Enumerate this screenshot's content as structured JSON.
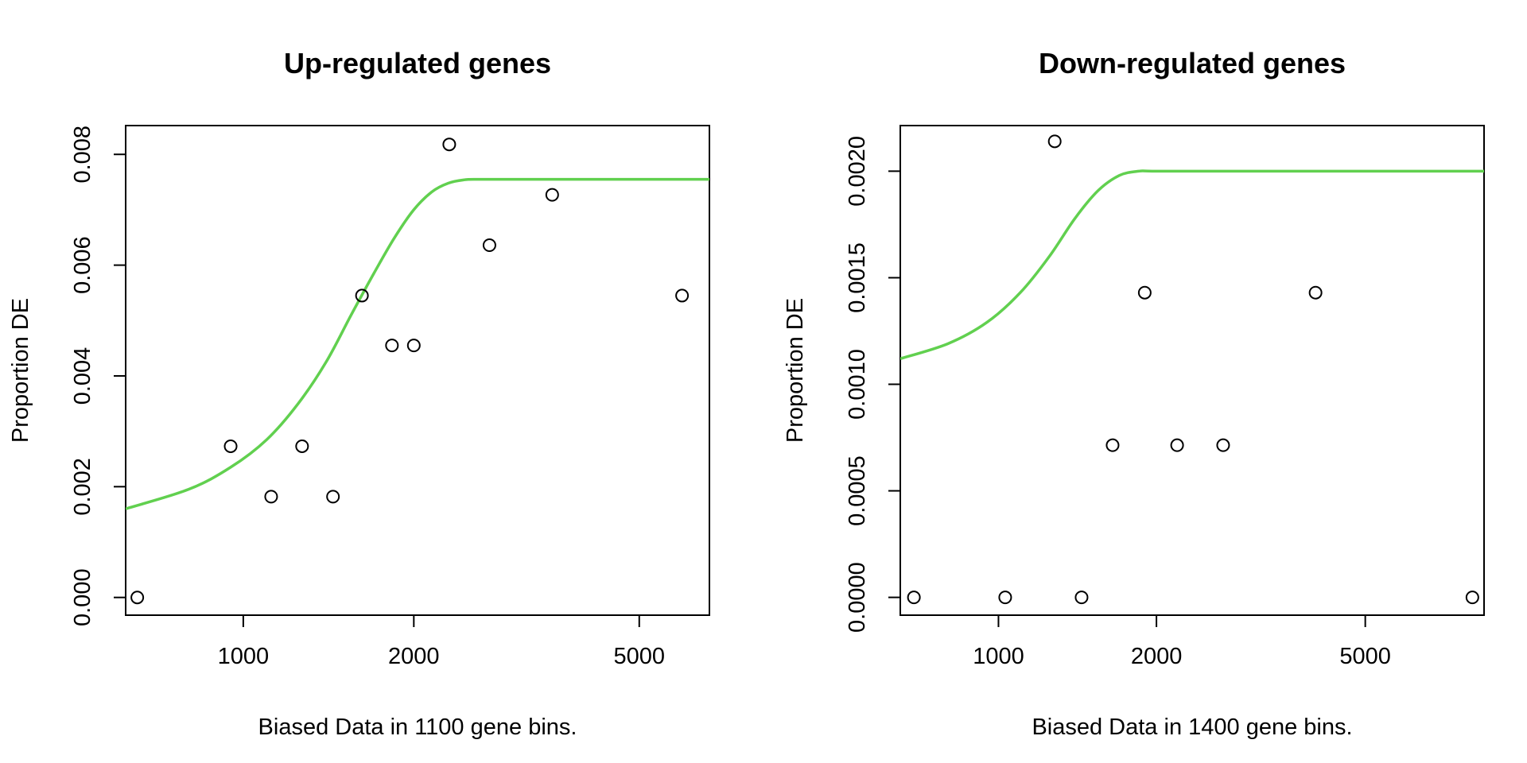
{
  "chart_data": [
    {
      "type": "scatter",
      "title": "Up-regulated genes",
      "xlabel": "Biased Data in 1100 gene bins.",
      "ylabel": "Proportion DE",
      "x_scale": "log",
      "xlim": [
        620,
        6650
      ],
      "ylim": [
        -0.00032,
        0.00852
      ],
      "x_ticks": [
        1000,
        2000,
        5000
      ],
      "x_tick_labels": [
        "1000",
        "2000",
        "5000"
      ],
      "y_ticks": [
        0,
        0.002,
        0.004,
        0.006,
        0.008
      ],
      "y_tick_labels": [
        "0.000",
        "0.002",
        "0.004",
        "0.006",
        "0.008"
      ],
      "points": {
        "x": [
          650,
          950,
          1120,
          1270,
          1440,
          1620,
          1830,
          2000,
          2310,
          2720,
          3510,
          5950
        ],
        "y": [
          0.0,
          0.00273,
          0.00182,
          0.00273,
          0.00182,
          0.00545,
          0.00455,
          0.00455,
          0.00818,
          0.00636,
          0.00727,
          0.00545
        ]
      },
      "fit_line": {
        "color": "#61d04f",
        "x": [
          620,
          800,
          950,
          1100,
          1250,
          1400,
          1550,
          1700,
          1850,
          2000,
          2150,
          2300,
          2450,
          2600,
          3000,
          4000,
          5000,
          6650
        ],
        "y": [
          0.0016,
          0.00195,
          0.00235,
          0.00285,
          0.0035,
          0.00425,
          0.0051,
          0.00585,
          0.0065,
          0.007,
          0.00732,
          0.00748,
          0.00754,
          0.00755,
          0.00755,
          0.00755,
          0.00755,
          0.00755
        ]
      },
      "grid": false,
      "legend": "none"
    },
    {
      "type": "scatter",
      "title": "Down-regulated genes",
      "xlabel": "Biased Data in 1400 gene bins.",
      "ylabel": "Proportion DE",
      "x_scale": "log",
      "xlim": [
        650,
        8420
      ],
      "ylim": [
        -8.35e-05,
        0.002214
      ],
      "x_ticks": [
        1000,
        2000,
        5000
      ],
      "x_tick_labels": [
        "1000",
        "2000",
        "5000"
      ],
      "y_ticks": [
        0,
        0.0005,
        0.001,
        0.0015,
        0.002
      ],
      "y_tick_labels": [
        "0.0000",
        "0.0005",
        "0.0010",
        "0.0015",
        "0.0020"
      ],
      "points": {
        "x": [
          690,
          1030,
          1280,
          1440,
          1650,
          1900,
          2190,
          2680,
          4020,
          8000
        ],
        "y": [
          0.0,
          0.0,
          0.00214,
          0.0,
          0.000714,
          0.00143,
          0.000714,
          0.000714,
          0.00143,
          0.0
        ]
      },
      "fit_line": {
        "color": "#61d04f",
        "x": [
          650,
          800,
          950,
          1100,
          1250,
          1400,
          1550,
          1700,
          1850,
          2000,
          3000,
          5000,
          8420
        ],
        "y": [
          0.00112,
          0.00119,
          0.00129,
          0.00143,
          0.0016,
          0.00178,
          0.00191,
          0.00198,
          0.002,
          0.002,
          0.002,
          0.002,
          0.002
        ]
      },
      "grid": false,
      "legend": "none"
    }
  ]
}
